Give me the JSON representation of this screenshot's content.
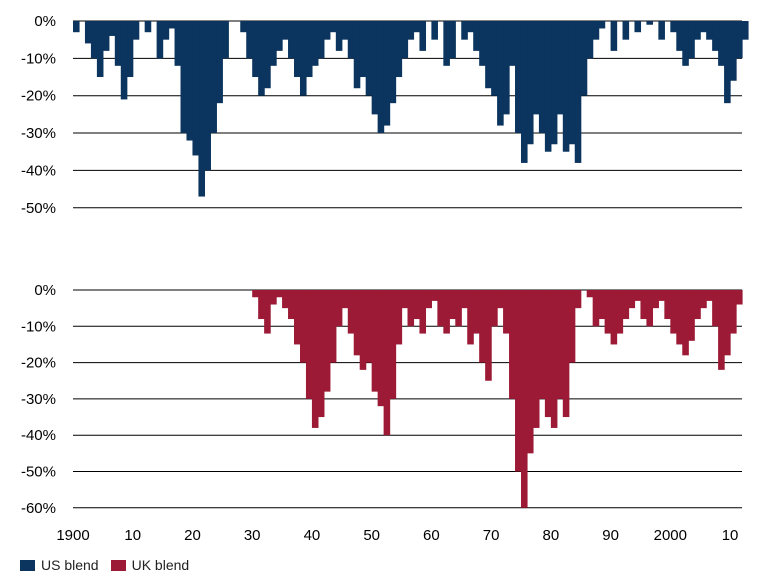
{
  "chart_data": [
    {
      "type": "area",
      "series": [
        {
          "name": "US blend",
          "color": "#0b355e"
        }
      ],
      "ylim": [
        -50,
        0
      ],
      "y_ticks": [
        "0%",
        "-10%",
        "-20%",
        "-30%",
        "-40%",
        "-50%"
      ],
      "xlim": [
        1900,
        2012
      ],
      "x": [
        1900,
        1902,
        1903,
        1904,
        1905,
        1906,
        1907,
        1908,
        1909,
        1910,
        1912,
        1914,
        1915,
        1916,
        1917,
        1918,
        1919,
        1920,
        1921,
        1922,
        1923,
        1924,
        1925,
        1928,
        1929,
        1930,
        1931,
        1932,
        1933,
        1934,
        1935,
        1936,
        1937,
        1938,
        1939,
        1940,
        1941,
        1942,
        1943,
        1944,
        1945,
        1946,
        1947,
        1948,
        1949,
        1950,
        1951,
        1952,
        1953,
        1954,
        1955,
        1956,
        1957,
        1958,
        1960,
        1962,
        1963,
        1965,
        1966,
        1967,
        1968,
        1969,
        1970,
        1971,
        1972,
        1973,
        1974,
        1975,
        1976,
        1977,
        1978,
        1979,
        1980,
        1981,
        1982,
        1983,
        1984,
        1985,
        1986,
        1987,
        1988,
        1990,
        1992,
        1994,
        1996,
        1998,
        2000,
        2001,
        2002,
        2003,
        2004,
        2005,
        2006,
        2007,
        2008,
        2009,
        2010,
        2011,
        2012
      ],
      "values": [
        -3,
        -6,
        -10,
        -15,
        -8,
        -4,
        -12,
        -21,
        -15,
        -5,
        -3,
        -10,
        -5,
        -2,
        -12,
        -30,
        -32,
        -36,
        -47,
        -40,
        -30,
        -22,
        -10,
        -3,
        -10,
        -15,
        -20,
        -18,
        -12,
        -8,
        -5,
        -10,
        -15,
        -20,
        -15,
        -12,
        -10,
        -5,
        -3,
        -8,
        -5,
        -10,
        -18,
        -15,
        -20,
        -25,
        -30,
        -28,
        -22,
        -15,
        -10,
        -5,
        -3,
        -8,
        -5,
        -12,
        -10,
        -5,
        -3,
        -8,
        -12,
        -18,
        -20,
        -28,
        -25,
        -12,
        -30,
        -38,
        -33,
        -25,
        -30,
        -35,
        -33,
        -25,
        -35,
        -33,
        -38,
        -20,
        -10,
        -5,
        -2,
        -8,
        -5,
        -3,
        -1,
        -5,
        -3,
        -8,
        -12,
        -10,
        -5,
        -3,
        -5,
        -8,
        -12,
        -22,
        -16,
        -10,
        -5
      ]
    },
    {
      "type": "area",
      "series": [
        {
          "name": "UK blend",
          "color": "#9c1a35"
        }
      ],
      "ylim": [
        -60,
        0
      ],
      "y_ticks": [
        "0%",
        "-10%",
        "-20%",
        "-30%",
        "-40%",
        "-50%",
        "-60%"
      ],
      "xlim": [
        1900,
        2012
      ],
      "x_ticks": [
        "1900",
        "10",
        "20",
        "30",
        "40",
        "50",
        "60",
        "70",
        "80",
        "90",
        "2000",
        "10"
      ],
      "x": [
        1930,
        1931,
        1932,
        1933,
        1934,
        1935,
        1936,
        1937,
        1938,
        1939,
        1940,
        1941,
        1942,
        1943,
        1944,
        1945,
        1946,
        1947,
        1948,
        1949,
        1950,
        1951,
        1952,
        1953,
        1954,
        1955,
        1956,
        1957,
        1958,
        1959,
        1960,
        1961,
        1962,
        1963,
        1964,
        1965,
        1966,
        1967,
        1968,
        1969,
        1970,
        1971,
        1972,
        1973,
        1974,
        1975,
        1976,
        1977,
        1978,
        1979,
        1980,
        1981,
        1982,
        1983,
        1984,
        1986,
        1987,
        1988,
        1989,
        1990,
        1991,
        1992,
        1993,
        1994,
        1995,
        1996,
        1997,
        1998,
        1999,
        2000,
        2001,
        2002,
        2003,
        2004,
        2005,
        2006,
        2007,
        2008,
        2009,
        2010,
        2011
      ],
      "values": [
        -2,
        -8,
        -12,
        -4,
        -2,
        -5,
        -8,
        -15,
        -20,
        -30,
        -38,
        -35,
        -28,
        -20,
        -10,
        -5,
        -12,
        -18,
        -22,
        -20,
        -28,
        -32,
        -40,
        -30,
        -15,
        -5,
        -10,
        -8,
        -12,
        -5,
        -3,
        -10,
        -12,
        -8,
        -10,
        -5,
        -15,
        -12,
        -20,
        -25,
        -10,
        -5,
        -12,
        -30,
        -50,
        -60,
        -45,
        -38,
        -30,
        -35,
        -38,
        -30,
        -35,
        -20,
        -5,
        -2,
        -10,
        -8,
        -12,
        -15,
        -12,
        -8,
        -5,
        -3,
        -8,
        -10,
        -5,
        -3,
        -8,
        -12,
        -15,
        -18,
        -14,
        -8,
        -5,
        -3,
        -10,
        -22,
        -18,
        -12,
        -4
      ]
    }
  ],
  "legend": {
    "us_label": "US blend",
    "uk_label": "UK blend"
  }
}
